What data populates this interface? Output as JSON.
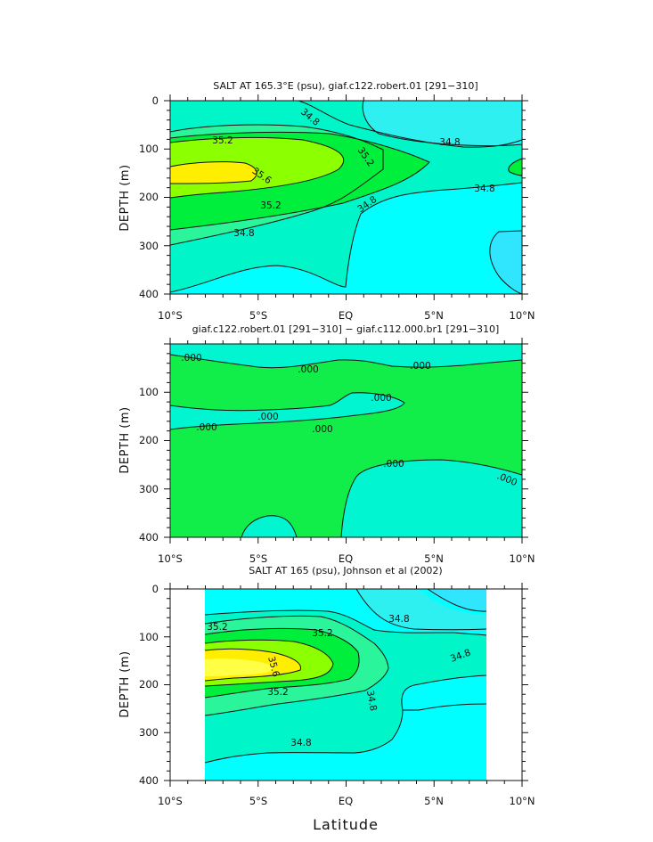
{
  "colors": {
    "cyan": "#00ffff",
    "aqua2": "#2ff0f0",
    "teal": "#00f5c8",
    "green_light": "#2af59a",
    "green": "#00ee3c",
    "lime": "#8cff00",
    "yellow": "#ffee00",
    "yellow_core": "#ffff45",
    "blue_deep": "#30e6ff",
    "diff_green": "#12ee49",
    "diff_teal": "#00f5d0",
    "line": "#111111"
  },
  "figure": {
    "xlabel": "Latitude"
  },
  "chart_data": [
    {
      "type": "heatmap",
      "title": "SALT AT 165.3°E (psu), giaf.c122.robert.01 [291−310]",
      "xlabel": "",
      "ylabel": "DEPTH (m)",
      "xlim": [
        -10,
        10
      ],
      "ylim": [
        400,
        0
      ],
      "x_ticks": [
        "10°S",
        "5°S",
        "EQ",
        "5°N",
        "10°N"
      ],
      "y_ticks": [
        "0",
        "100",
        "200",
        "300",
        "400"
      ],
      "contour_labels": [
        {
          "text": "34.8",
          "x": -2.6,
          "y": 28
        },
        {
          "text": "35.2",
          "x": -8.0,
          "y": 83
        },
        {
          "text": "34.8",
          "x": 4.5,
          "y": 90
        },
        {
          "text": "35.2",
          "x": -0.5,
          "y": 130
        },
        {
          "text": "35.6",
          "x": -6.0,
          "y": 160
        },
        {
          "text": "34.8",
          "x": 7.5,
          "y": 182
        },
        {
          "text": "35.2",
          "x": -5.3,
          "y": 218
        },
        {
          "text": "34.8",
          "x": 1.3,
          "y": 210
        },
        {
          "text": "34.8",
          "x": -6.5,
          "y": 268
        }
      ]
    },
    {
      "type": "heatmap",
      "title": "giaf.c122.robert.01 [291−310] − giaf.c112.000.br1 [291−310]",
      "xlabel": "",
      "ylabel": "DEPTH (m)",
      "xlim": [
        -10,
        10
      ],
      "ylim": [
        400,
        0
      ],
      "x_ticks": [
        "10°S",
        "5°S",
        "EQ",
        "5°N",
        "10°N"
      ],
      "y_ticks": [
        "0",
        "100",
        "200",
        "300",
        "400"
      ],
      "contour_labels": [
        {
          "text": ".000",
          "x": -9.0,
          "y": 32
        },
        {
          "text": ".000",
          "x": -2.6,
          "y": 52
        },
        {
          "text": ".000",
          "x": 4.3,
          "y": 45
        },
        {
          "text": ".000",
          "x": -4.5,
          "y": 148
        },
        {
          "text": ".000",
          "x": 2.0,
          "y": 125
        },
        {
          "text": ".000",
          "x": -8.0,
          "y": 183
        },
        {
          "text": ".000",
          "x": -1.3,
          "y": 185
        },
        {
          "text": ".000",
          "x": 2.7,
          "y": 225
        },
        {
          "text": ".000",
          "x": 9.2,
          "y": 282
        }
      ]
    },
    {
      "type": "heatmap",
      "title": "SALT AT 165 (psu), Johnson et al (2002)",
      "xlabel": "Latitude",
      "ylabel": "DEPTH (m)",
      "xlim": [
        -10,
        10
      ],
      "ylim": [
        400,
        0
      ],
      "data_x_range": [
        -8,
        8
      ],
      "data_y_range": [
        10,
        400
      ],
      "x_ticks": [
        "10°S",
        "5°S",
        "EQ",
        "5°N",
        "10°N"
      ],
      "y_ticks": [
        "0",
        "100",
        "200",
        "300",
        "400"
      ],
      "contour_labels": [
        {
          "text": "35.2",
          "x": -7.4,
          "y": 85
        },
        {
          "text": "35.2",
          "x": -2.7,
          "y": 98
        },
        {
          "text": "34.8",
          "x": 3.0,
          "y": 65
        },
        {
          "text": "34.8",
          "x": 6.5,
          "y": 138
        },
        {
          "text": "35.6",
          "x": -4.5,
          "y": 158
        },
        {
          "text": "35.2",
          "x": -4.0,
          "y": 215
        },
        {
          "text": "34.8",
          "x": 1.1,
          "y": 225
        },
        {
          "text": "34.8",
          "x": -2.4,
          "y": 322
        }
      ]
    }
  ]
}
